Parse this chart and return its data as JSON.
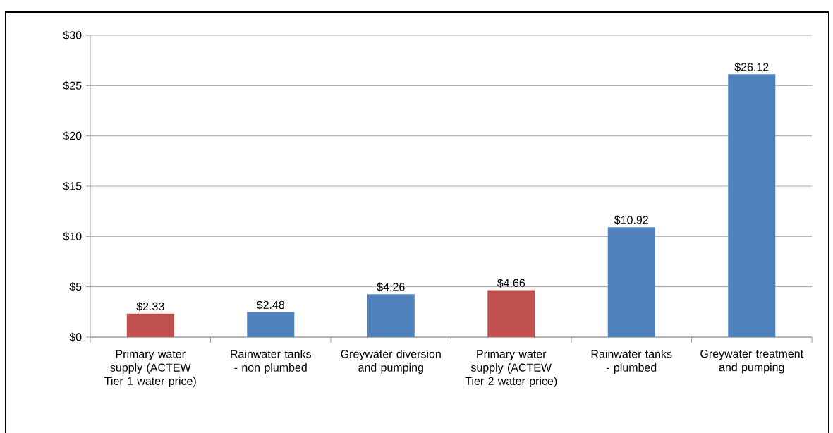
{
  "chart_data": {
    "type": "bar",
    "categories": [
      "Primary water supply (ACTEW Tier 1 water price)",
      "Rainwater tanks - non plumbed",
      "Greywater diversion and pumping",
      "Primary water supply (ACTEW Tier 2 water price)",
      "Rainwater tanks - plumbed",
      "Greywater treatment and pumping"
    ],
    "values": [
      2.33,
      2.48,
      4.26,
      4.66,
      10.92,
      26.12
    ],
    "colors": [
      "#c0504d",
      "#4f81bd",
      "#4f81bd",
      "#c0504d",
      "#4f81bd",
      "#4f81bd"
    ],
    "value_labels": [
      "$2.33",
      "$2.48",
      "$4.26",
      "$4.66",
      "$10.92",
      "$26.12"
    ],
    "ylim": [
      0,
      30
    ],
    "yticks": [
      {
        "value": 0,
        "label": "$0"
      },
      {
        "value": 5,
        "label": "$5"
      },
      {
        "value": 10,
        "label": "$10"
      },
      {
        "value": 15,
        "label": "$15"
      },
      {
        "value": 20,
        "label": "$20"
      },
      {
        "value": 25,
        "label": "$25"
      },
      {
        "value": 30,
        "label": "$30"
      }
    ],
    "grid": "y"
  }
}
